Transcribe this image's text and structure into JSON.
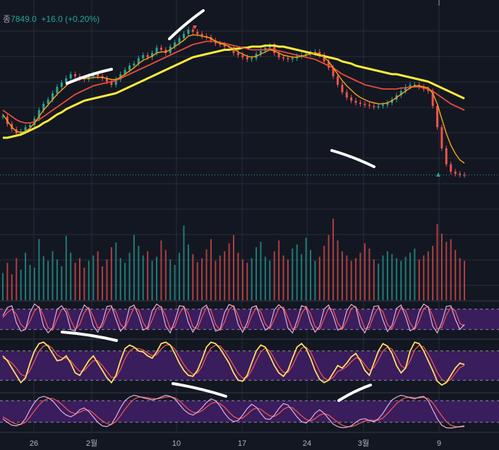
{
  "header": {
    "close_label": "종",
    "close_value": "7849.0",
    "change": "+16.0 (+0.20%)"
  },
  "colors": {
    "bg": "#131722",
    "grid": "#2a2e39",
    "up": "#26a69a",
    "down": "#ef5350",
    "ma_fast": "#f39c12",
    "ma_mid": "#e74c3c",
    "ma_slow": "#ffeb3b",
    "osc_band": "#3a1d5c",
    "osc_line": "#e0b0e8",
    "osc_signal": "#ef5350",
    "last_price_line": "#26a69a",
    "annotation": "#ffffff",
    "text": "#b2b5be"
  },
  "x_ticks": [
    "26",
    "2월",
    "10",
    "17",
    "24",
    "3월",
    "9"
  ],
  "chart_data": [
    {
      "type": "candlestick",
      "panel": "price",
      "title": "",
      "last_price": 7849.0,
      "ylim": [
        7500,
        9500
      ],
      "grid": true,
      "closes": [
        8400,
        8330,
        8280,
        8240,
        8260,
        8300,
        8320,
        8380,
        8460,
        8520,
        8560,
        8620,
        8680,
        8720,
        8760,
        8800,
        8780,
        8760,
        8750,
        8780,
        8800,
        8780,
        8760,
        8730,
        8700,
        8750,
        8800,
        8840,
        8880,
        8900,
        8950,
        8980,
        8960,
        9000,
        9050,
        9030,
        9000,
        9060,
        9100,
        9140,
        9180,
        9220,
        9200,
        9180,
        9160,
        9150,
        9120,
        9090,
        9080,
        9060,
        9050,
        9000,
        8980,
        8960,
        8940,
        8950,
        8990,
        9020,
        9050,
        9070,
        9000,
        8960,
        8950,
        8940,
        8950,
        8970,
        8980,
        8990,
        9000,
        9010,
        8980,
        8920,
        8860,
        8780,
        8700,
        8630,
        8580,
        8550,
        8530,
        8520,
        8510,
        8500,
        8490,
        8500,
        8510,
        8530,
        8560,
        8600,
        8640,
        8680,
        8700,
        8700,
        8680,
        8660,
        8640,
        8500,
        8300,
        8100,
        7950,
        7880,
        7860,
        7850,
        7849
      ],
      "ma_fast": [
        8420,
        8360,
        8300,
        8260,
        8250,
        8260,
        8290,
        8340,
        8400,
        8460,
        8510,
        8560,
        8610,
        8650,
        8690,
        8730,
        8750,
        8760,
        8760,
        8760,
        8770,
        8770,
        8770,
        8760,
        8750,
        8750,
        8770,
        8800,
        8830,
        8860,
        8900,
        8930,
        8950,
        8970,
        9000,
        9010,
        9010,
        9030,
        9060,
        9090,
        9120,
        9160,
        9170,
        9170,
        9160,
        9150,
        9140,
        9110,
        9090,
        9080,
        9060,
        9040,
        9010,
        8990,
        8970,
        8960,
        8970,
        8990,
        9010,
        9030,
        9020,
        9000,
        8980,
        8970,
        8960,
        8960,
        8970,
        8980,
        8990,
        9000,
        8990,
        8960,
        8920,
        8860,
        8800,
        8740,
        8690,
        8650,
        8610,
        8580,
        8560,
        8540,
        8530,
        8520,
        8520,
        8530,
        8550,
        8580,
        8610,
        8640,
        8670,
        8690,
        8690,
        8680,
        8670,
        8620,
        8520,
        8380,
        8240,
        8130,
        8050,
        7990,
        7960
      ],
      "ma_mid": [
        8460,
        8430,
        8400,
        8370,
        8350,
        8340,
        8340,
        8350,
        8370,
        8400,
        8430,
        8460,
        8490,
        8520,
        8550,
        8580,
        8610,
        8630,
        8650,
        8670,
        8690,
        8700,
        8710,
        8720,
        8730,
        8740,
        8760,
        8780,
        8800,
        8820,
        8840,
        8860,
        8880,
        8900,
        8920,
        8940,
        8960,
        8980,
        9000,
        9020,
        9040,
        9060,
        9080,
        9090,
        9100,
        9110,
        9110,
        9110,
        9100,
        9090,
        9080,
        9070,
        9060,
        9050,
        9040,
        9030,
        9030,
        9030,
        9030,
        9040,
        9030,
        9020,
        9010,
        9000,
        8990,
        8980,
        8970,
        8960,
        8950,
        8940,
        8920,
        8900,
        8880,
        8860,
        8830,
        8800,
        8780,
        8760,
        8740,
        8720,
        8700,
        8690,
        8680,
        8670,
        8660,
        8660,
        8660,
        8660,
        8670,
        8670,
        8680,
        8680,
        8680,
        8670,
        8660,
        8640,
        8610,
        8580,
        8550,
        8520,
        8500,
        8480,
        8460
      ],
      "ma_slow": [
        8200,
        8200,
        8210,
        8220,
        8230,
        8250,
        8270,
        8290,
        8310,
        8340,
        8360,
        8390,
        8420,
        8440,
        8470,
        8490,
        8510,
        8530,
        8550,
        8560,
        8570,
        8580,
        8590,
        8600,
        8610,
        8620,
        8640,
        8660,
        8680,
        8700,
        8720,
        8740,
        8760,
        8780,
        8800,
        8820,
        8840,
        8860,
        8880,
        8900,
        8920,
        8940,
        8960,
        8970,
        8980,
        8990,
        9000,
        9010,
        9020,
        9030,
        9030,
        9040,
        9040,
        9050,
        9050,
        9060,
        9060,
        9060,
        9070,
        9070,
        9070,
        9060,
        9060,
        9050,
        9040,
        9030,
        9020,
        9010,
        9000,
        8990,
        8980,
        8970,
        8960,
        8950,
        8940,
        8920,
        8910,
        8900,
        8880,
        8870,
        8860,
        8850,
        8840,
        8830,
        8820,
        8810,
        8800,
        8800,
        8790,
        8780,
        8770,
        8760,
        8750,
        8740,
        8730,
        8710,
        8690,
        8670,
        8650,
        8630,
        8610,
        8590,
        8570
      ]
    },
    {
      "type": "bar",
      "panel": "volume",
      "title": "",
      "values": [
        40,
        55,
        38,
        62,
        45,
        70,
        52,
        48,
        90,
        65,
        58,
        72,
        60,
        50,
        95,
        70,
        55,
        62,
        48,
        58,
        66,
        72,
        50,
        60,
        78,
        85,
        62,
        55,
        70,
        96,
        80,
        66,
        72,
        58,
        64,
        88,
        74,
        60,
        52,
        70,
        110,
        82,
        68,
        56,
        62,
        75,
        90,
        58,
        66,
        72,
        84,
        96,
        70,
        60,
        55,
        62,
        78,
        86,
        64,
        58,
        72,
        88,
        66,
        60,
        76,
        82,
        68,
        92,
        74,
        58,
        64,
        80,
        96,
        120,
        88,
        72,
        66,
        58,
        62,
        70,
        84,
        76,
        60,
        54,
        66,
        72,
        68,
        62,
        58,
        64,
        70,
        76,
        60,
        66,
        72,
        80,
        112,
        98,
        86,
        90,
        74,
        62,
        58
      ],
      "ylim": [
        0,
        130
      ]
    },
    {
      "type": "line",
      "panel": "oscillator-1",
      "title": "",
      "ylim": [
        0,
        100
      ],
      "bands": [
        20,
        80
      ],
      "series": [
        {
          "values": [
            60,
            85,
            90,
            40,
            15,
            20,
            70,
            95,
            85,
            30,
            10,
            25,
            80,
            90,
            70,
            20,
            15,
            60,
            92,
            80,
            30,
            12,
            40,
            88,
            90,
            50,
            15,
            30,
            85,
            92,
            60,
            18,
            25,
            75,
            95,
            85,
            30,
            10,
            45,
            90,
            88,
            40,
            12,
            35,
            82,
            92,
            55,
            15,
            20,
            70,
            94,
            88,
            35,
            12,
            40,
            85,
            90,
            50,
            18,
            28,
            78,
            93,
            80,
            25,
            10,
            45,
            90,
            86,
            40,
            12,
            30,
            80,
            92,
            60,
            18,
            25,
            75,
            94,
            85,
            30,
            10,
            42,
            88,
            90,
            48,
            14,
            32,
            82,
            92,
            58,
            16,
            24,
            72,
            95,
            86,
            30,
            10,
            40,
            88,
            90,
            50,
            20,
            35
          ]
        },
        {
          "values": [
            55,
            70,
            80,
            65,
            35,
            22,
            45,
            75,
            88,
            60,
            25,
            18,
            50,
            80,
            82,
            48,
            20,
            35,
            70,
            85,
            58,
            25,
            28,
            62,
            86,
            72,
            35,
            22,
            55,
            85,
            78,
            40,
            20,
            48,
            82,
            88,
            60,
            22,
            28,
            66,
            88,
            68,
            28,
            22,
            56,
            86,
            76,
            35,
            18,
            42,
            80,
            90,
            62,
            25,
            26,
            60,
            86,
            72,
            36,
            22,
            50,
            84,
            86,
            54,
            20,
            28,
            66,
            88,
            66,
            28,
            20,
            52,
            84,
            78,
            40,
            20,
            46,
            82,
            88,
            58,
            22,
            26,
            62,
            86,
            72,
            34,
            22,
            54,
            86,
            76,
            38,
            20,
            46,
            82,
            88,
            60,
            22,
            26,
            62,
            86,
            74,
            38,
            30
          ]
        }
      ]
    },
    {
      "type": "line",
      "panel": "oscillator-2",
      "title": "",
      "ylim": [
        0,
        100
      ],
      "bands": [
        20,
        80
      ],
      "series": [
        {
          "values": [
            70,
            60,
            45,
            30,
            15,
            25,
            55,
            80,
            95,
            98,
            90,
            75,
            60,
            62,
            70,
            55,
            35,
            30,
            45,
            60,
            70,
            55,
            40,
            25,
            15,
            30,
            60,
            85,
            92,
            88,
            80,
            78,
            70,
            65,
            78,
            95,
            98,
            92,
            75,
            55,
            40,
            30,
            28,
            40,
            62,
            88,
            98,
            95,
            85,
            70,
            55,
            35,
            20,
            18,
            30,
            55,
            80,
            92,
            88,
            70,
            50,
            35,
            28,
            40,
            65,
            88,
            95,
            85,
            65,
            40,
            22,
            15,
            20,
            35,
            50,
            45,
            55,
            68,
            75,
            60,
            40,
            30,
            55,
            80,
            95,
            90,
            75,
            50,
            35,
            45,
            80,
            98,
            95,
            80,
            60,
            40,
            18,
            10,
            15,
            30,
            45,
            55,
            52
          ]
        },
        {
          "values": [
            65,
            62,
            55,
            45,
            32,
            28,
            40,
            60,
            80,
            90,
            92,
            85,
            72,
            66,
            65,
            60,
            48,
            38,
            40,
            50,
            60,
            60,
            50,
            38,
            26,
            26,
            42,
            64,
            80,
            86,
            85,
            82,
            76,
            70,
            72,
            84,
            92,
            92,
            84,
            68,
            52,
            40,
            32,
            35,
            48,
            70,
            86,
            92,
            90,
            80,
            66,
            50,
            34,
            24,
            26,
            40,
            60,
            78,
            86,
            80,
            64,
            48,
            36,
            36,
            50,
            70,
            86,
            88,
            78,
            58,
            38,
            24,
            20,
            26,
            38,
            42,
            48,
            58,
            66,
            64,
            52,
            40,
            46,
            62,
            80,
            88,
            84,
            68,
            50,
            44,
            60,
            82,
            92,
            88,
            74,
            56,
            36,
            22,
            16,
            22,
            34,
            46,
            50
          ]
        }
      ]
    },
    {
      "type": "line",
      "panel": "oscillator-3",
      "title": "",
      "ylim": [
        0,
        100
      ],
      "bands": [
        20,
        80
      ],
      "series": [
        {
          "values": [
            30,
            20,
            12,
            10,
            15,
            30,
            55,
            75,
            88,
            92,
            88,
            80,
            65,
            50,
            40,
            35,
            42,
            55,
            60,
            50,
            35,
            20,
            10,
            8,
            15,
            35,
            60,
            80,
            90,
            95,
            92,
            88,
            85,
            82,
            85,
            90,
            95,
            92,
            85,
            70,
            55,
            45,
            40,
            48,
            60,
            75,
            85,
            80,
            65,
            45,
            30,
            22,
            25,
            40,
            58,
            70,
            62,
            45,
            30,
            28,
            40,
            58,
            72,
            68,
            52,
            35,
            22,
            18,
            28,
            45,
            55,
            45,
            30,
            15,
            8,
            5,
            6,
            10,
            20,
            28,
            30,
            25,
            22,
            30,
            45,
            65,
            82,
            90,
            95,
            92,
            88,
            85,
            90,
            92,
            80,
            55,
            30,
            12,
            5,
            4,
            6,
            8,
            10
          ]
        },
        {
          "values": [
            35,
            28,
            20,
            15,
            14,
            20,
            35,
            52,
            68,
            80,
            86,
            86,
            80,
            70,
            58,
            48,
            44,
            48,
            54,
            54,
            46,
            34,
            24,
            16,
            14,
            22,
            38,
            56,
            72,
            84,
            90,
            90,
            88,
            86,
            85,
            87,
            90,
            91,
            88,
            80,
            68,
            56,
            48,
            46,
            52,
            62,
            72,
            76,
            72,
            62,
            48,
            36,
            30,
            32,
            42,
            54,
            60,
            56,
            46,
            38,
            36,
            44,
            56,
            62,
            60,
            50,
            38,
            28,
            24,
            30,
            40,
            44,
            40,
            30,
            20,
            12,
            8,
            8,
            12,
            18,
            24,
            26,
            25,
            26,
            32,
            44,
            58,
            72,
            82,
            88,
            90,
            88,
            88,
            89,
            86,
            74,
            56,
            38,
            22,
            12,
            8,
            7,
            8
          ]
        }
      ]
    }
  ]
}
